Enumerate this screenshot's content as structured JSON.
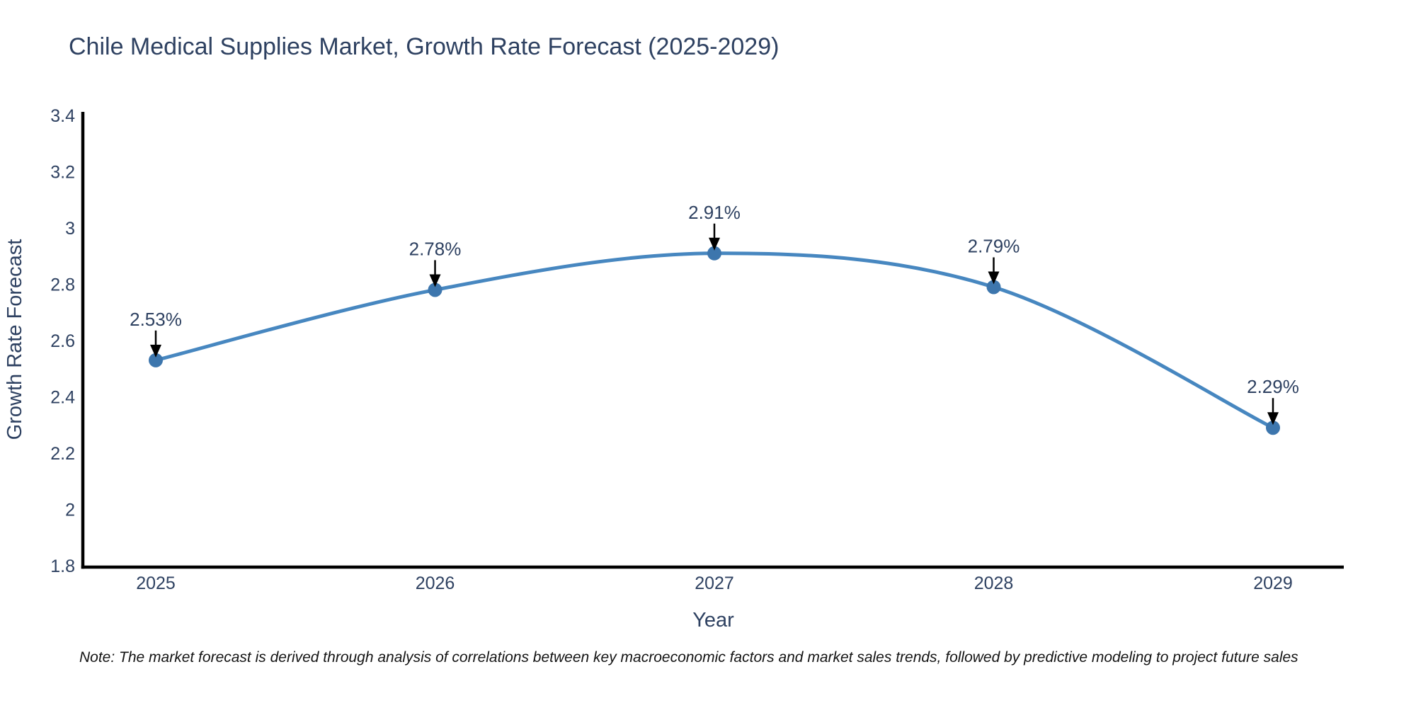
{
  "page": {
    "background": "#ffffff"
  },
  "header": {
    "title": "Chile Medical Supplies Market, Growth Rate Forecast (2025-2029)"
  },
  "footer": {
    "note": "Note: The market forecast is derived through analysis of correlations between key macroeconomic factors and market sales trends, followed by predictive modeling to project future sales"
  },
  "chart_data": {
    "type": "line",
    "title": "Chile Medical Supplies Market, Growth Rate Forecast (2025-2029)",
    "xlabel": "Year",
    "ylabel": "Growth Rate Forecast",
    "categories": [
      "2025",
      "2026",
      "2027",
      "2028",
      "2029"
    ],
    "values": [
      2.53,
      2.78,
      2.91,
      2.79,
      2.29
    ],
    "point_labels": [
      "2.53%",
      "2.78%",
      "2.91%",
      "2.79%",
      "2.29%"
    ],
    "ylim": [
      1.8,
      3.4
    ],
    "yticks": [
      "1.8",
      "2",
      "2.2",
      "2.4",
      "2.6",
      "2.8",
      "3",
      "3.2",
      "3.4"
    ],
    "grid": false,
    "legend": "none",
    "smoothing": "spline",
    "line_color": "#4787c0",
    "marker_color": "#3d76ad",
    "arrow_color": "#000000",
    "axis_color": "#000000",
    "text_color": "#2e4161"
  }
}
